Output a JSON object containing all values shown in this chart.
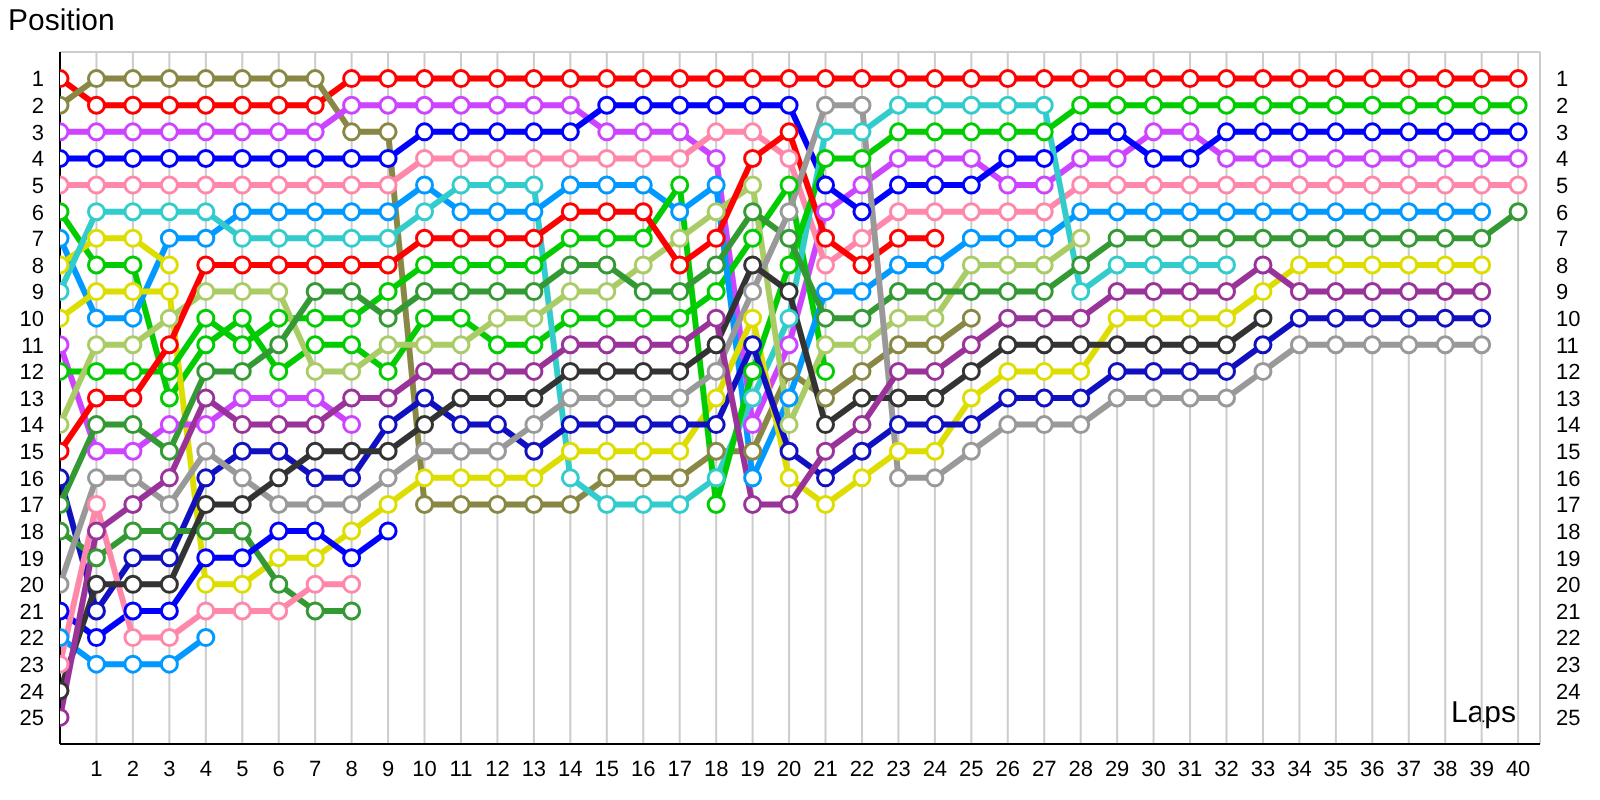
{
  "chart_data": {
    "type": "line",
    "xlabel": "Laps",
    "ylabel": "Position",
    "x": [
      0,
      1,
      2,
      3,
      4,
      5,
      6,
      7,
      8,
      9,
      10,
      11,
      12,
      13,
      14,
      15,
      16,
      17,
      18,
      19,
      20,
      21,
      22,
      23,
      24,
      25,
      26,
      27,
      28,
      29,
      30,
      31,
      32,
      33,
      34,
      35,
      36,
      37,
      38,
      39,
      40
    ],
    "xlim": [
      0,
      40.6
    ],
    "xticks": [
      1,
      2,
      3,
      4,
      5,
      6,
      7,
      8,
      9,
      10,
      11,
      12,
      13,
      14,
      15,
      16,
      17,
      18,
      19,
      20,
      21,
      22,
      23,
      24,
      25,
      26,
      27,
      28,
      29,
      30,
      31,
      32,
      33,
      34,
      35,
      36,
      37,
      38,
      39,
      40
    ],
    "ylim": [
      26,
      0
    ],
    "yticks": [
      1,
      2,
      3,
      4,
      5,
      6,
      7,
      8,
      9,
      10,
      11,
      12,
      13,
      14,
      15,
      16,
      17,
      18,
      19,
      20,
      21,
      22,
      23,
      24,
      25
    ],
    "y2lim": [
      26,
      0
    ],
    "y2ticks": [
      1,
      2,
      3,
      4,
      5,
      6,
      7,
      8,
      9,
      10,
      11,
      12,
      13,
      14,
      15,
      16,
      17,
      18,
      19,
      20,
      21,
      22,
      23,
      24,
      25
    ],
    "grid": true,
    "marker": "circle",
    "line_style": "solid",
    "series": [
      {
        "color": "#ff0000",
        "values": [
          1,
          2,
          2,
          2,
          2,
          2,
          2,
          2,
          1,
          1,
          1,
          1,
          1,
          1,
          1,
          1,
          1,
          1,
          1,
          1,
          1,
          1,
          1,
          1,
          1,
          1,
          1,
          1,
          1,
          1,
          1,
          1,
          1,
          1,
          1,
          1,
          1,
          1,
          1,
          1,
          1
        ]
      },
      {
        "color": "#888844",
        "values": [
          2,
          1,
          1,
          1,
          1,
          1,
          1,
          1,
          3,
          3,
          17,
          17,
          17,
          17,
          17,
          16,
          16,
          16,
          15,
          15,
          12,
          13,
          12,
          11,
          11,
          10,
          null,
          null,
          null,
          null,
          null,
          null,
          null,
          null,
          null,
          null,
          null,
          null,
          null,
          null,
          null
        ]
      },
      {
        "color": "#cc44ff",
        "values": [
          3,
          3,
          3,
          3,
          3,
          3,
          3,
          3,
          2,
          2,
          2,
          2,
          2,
          2,
          2,
          3,
          3,
          3,
          4,
          14,
          11,
          6,
          5,
          4,
          4,
          4,
          5,
          5,
          4,
          4,
          3,
          3,
          4,
          4,
          4,
          4,
          4,
          4,
          4,
          4,
          4
        ]
      },
      {
        "color": "#0000ff",
        "values": [
          4,
          4,
          4,
          4,
          4,
          4,
          4,
          4,
          4,
          4,
          3,
          3,
          3,
          3,
          3,
          2,
          2,
          2,
          2,
          2,
          2,
          5,
          6,
          5,
          5,
          5,
          4,
          4,
          3,
          3,
          4,
          4,
          3,
          3,
          3,
          3,
          3,
          3,
          3,
          3,
          3
        ]
      },
      {
        "color": "#ff88aa",
        "values": [
          5,
          5,
          5,
          5,
          5,
          5,
          5,
          5,
          5,
          5,
          4,
          4,
          4,
          4,
          4,
          4,
          4,
          4,
          3,
          3,
          4,
          8,
          7,
          6,
          6,
          6,
          6,
          6,
          5,
          5,
          5,
          5,
          5,
          5,
          5,
          5,
          5,
          5,
          5,
          5,
          5
        ]
      },
      {
        "color": "#00cc00",
        "values": [
          6,
          8,
          8,
          13,
          11,
          10,
          12,
          11,
          11,
          12,
          10,
          10,
          11,
          11,
          10,
          10,
          10,
          10,
          9,
          7,
          5,
          12,
          null,
          null,
          null,
          null,
          null,
          null,
          null,
          null,
          null,
          null,
          null,
          null,
          null,
          null,
          null,
          null,
          null,
          null,
          null
        ]
      },
      {
        "color": "#0099ff",
        "values": [
          7,
          10,
          10,
          7,
          7,
          6,
          6,
          6,
          6,
          6,
          5,
          6,
          6,
          6,
          5,
          5,
          5,
          6,
          5,
          16,
          13,
          9,
          9,
          8,
          8,
          7,
          7,
          7,
          6,
          6,
          6,
          6,
          6,
          6,
          6,
          6,
          6,
          6,
          6,
          6,
          null
        ]
      },
      {
        "color": "#dddd00",
        "values": [
          8,
          7,
          7,
          8,
          null,
          null,
          null,
          null,
          null,
          null,
          null,
          null,
          null,
          null,
          null,
          null,
          null,
          null,
          null,
          null,
          null,
          null,
          null,
          null,
          null,
          null,
          null,
          null,
          null,
          null,
          null,
          null,
          null,
          null,
          null,
          null,
          null,
          null,
          null,
          null,
          null
        ]
      },
      {
        "color": "#33cccc",
        "values": [
          9,
          6,
          6,
          6,
          6,
          7,
          7,
          7,
          7,
          7,
          6,
          5,
          5,
          5,
          16,
          17,
          17,
          17,
          16,
          13,
          10,
          3,
          3,
          2,
          2,
          2,
          2,
          2,
          9,
          8,
          8,
          8,
          8,
          null,
          null,
          null,
          null,
          null,
          null,
          null,
          null
        ]
      },
      {
        "color": "#dddd00",
        "values": [
          10,
          9,
          9,
          9,
          20,
          20,
          19,
          19,
          18,
          17,
          16,
          16,
          16,
          16,
          15,
          15,
          15,
          15,
          13,
          10,
          16,
          17,
          16,
          15,
          15,
          13,
          12,
          12,
          12,
          10,
          10,
          10,
          10,
          9,
          8,
          8,
          8,
          8,
          8,
          8,
          null
        ]
      },
      {
        "color": "#cc44ff",
        "values": [
          11,
          15,
          15,
          14,
          14,
          13,
          13,
          13,
          14,
          null,
          null,
          null,
          null,
          null,
          null,
          null,
          null,
          null,
          null,
          null,
          null,
          null,
          null,
          null,
          null,
          null,
          null,
          null,
          null,
          null,
          null,
          null,
          null,
          null,
          null,
          null,
          null,
          null,
          null,
          null,
          null
        ]
      },
      {
        "color": "#00cc00",
        "values": [
          12,
          12,
          12,
          12,
          10,
          11,
          10,
          10,
          10,
          9,
          8,
          8,
          8,
          8,
          7,
          7,
          7,
          5,
          17,
          12,
          8,
          4,
          4,
          3,
          3,
          3,
          3,
          3,
          2,
          2,
          2,
          2,
          2,
          2,
          2,
          2,
          2,
          2,
          2,
          2,
          2
        ]
      },
      {
        "color": "#aacc66",
        "values": [
          14,
          11,
          11,
          10,
          9,
          9,
          9,
          12,
          12,
          11,
          11,
          11,
          10,
          10,
          9,
          9,
          8,
          7,
          6,
          5,
          14,
          11,
          11,
          10,
          10,
          8,
          8,
          8,
          7,
          null,
          null,
          null,
          null,
          null,
          null,
          null,
          null,
          null,
          null,
          null,
          null
        ]
      },
      {
        "color": "#ff0000",
        "values": [
          15,
          13,
          13,
          11,
          8,
          8,
          8,
          8,
          8,
          8,
          7,
          7,
          7,
          7,
          6,
          6,
          6,
          8,
          7,
          4,
          3,
          7,
          8,
          7,
          7,
          null,
          null,
          null,
          null,
          null,
          null,
          null,
          null,
          null,
          null,
          null,
          null,
          null,
          null,
          null,
          null
        ]
      },
      {
        "color": "#1010c0",
        "values": [
          16,
          21,
          19,
          19,
          16,
          15,
          15,
          16,
          16,
          14,
          13,
          14,
          14,
          15,
          14,
          14,
          14,
          14,
          14,
          11,
          15,
          16,
          15,
          14,
          14,
          14,
          13,
          13,
          13,
          12,
          12,
          12,
          12,
          11,
          10,
          10,
          10,
          10,
          10,
          10,
          null
        ]
      },
      {
        "color": "#339933",
        "values": [
          17,
          14,
          14,
          15,
          12,
          12,
          11,
          9,
          9,
          10,
          9,
          9,
          9,
          9,
          8,
          8,
          9,
          9,
          8,
          6,
          7,
          10,
          10,
          9,
          9,
          9,
          9,
          9,
          8,
          7,
          7,
          7,
          7,
          7,
          7,
          7,
          7,
          7,
          7,
          7,
          6
        ]
      },
      {
        "color": "#339933",
        "values": [
          18,
          19,
          18,
          18,
          18,
          18,
          20,
          21,
          21,
          null,
          null,
          null,
          null,
          null,
          null,
          null,
          null,
          null,
          null,
          null,
          null,
          null,
          null,
          null,
          null,
          null,
          null,
          null,
          null,
          null,
          null,
          null,
          null,
          null,
          null,
          null,
          null,
          null,
          null,
          null,
          null
        ]
      },
      {
        "color": "#999999",
        "values": [
          20,
          16,
          16,
          17,
          15,
          16,
          17,
          17,
          17,
          16,
          15,
          15,
          15,
          14,
          13,
          13,
          13,
          13,
          12,
          9,
          6,
          2,
          2,
          16,
          16,
          15,
          14,
          14,
          14,
          13,
          13,
          13,
          13,
          12,
          11,
          11,
          11,
          11,
          11,
          11,
          null
        ]
      },
      {
        "color": "#0000ff",
        "values": [
          21,
          22,
          21,
          21,
          19,
          19,
          18,
          18,
          19,
          18,
          null,
          null,
          null,
          null,
          null,
          null,
          null,
          null,
          null,
          null,
          null,
          null,
          null,
          null,
          null,
          null,
          null,
          null,
          null,
          null,
          null,
          null,
          null,
          null,
          null,
          null,
          null,
          null,
          null,
          null,
          null
        ]
      },
      {
        "color": "#0099ff",
        "values": [
          22,
          23,
          23,
          23,
          22,
          null,
          null,
          null,
          null,
          null,
          null,
          null,
          null,
          null,
          null,
          null,
          null,
          null,
          null,
          null,
          null,
          null,
          null,
          null,
          null,
          null,
          null,
          null,
          null,
          null,
          null,
          null,
          null,
          null,
          null,
          null,
          null,
          null,
          null,
          null,
          null
        ]
      },
      {
        "color": "#ff88aa",
        "values": [
          23,
          17,
          22,
          22,
          21,
          21,
          21,
          20,
          20,
          null,
          null,
          null,
          null,
          null,
          null,
          null,
          null,
          null,
          null,
          null,
          null,
          null,
          null,
          null,
          null,
          null,
          null,
          null,
          null,
          null,
          null,
          null,
          null,
          null,
          null,
          null,
          null,
          null,
          null,
          null,
          null
        ]
      },
      {
        "color": "#333333",
        "values": [
          24,
          20,
          20,
          20,
          17,
          17,
          16,
          15,
          15,
          15,
          14,
          13,
          13,
          13,
          12,
          12,
          12,
          12,
          11,
          8,
          9,
          14,
          13,
          13,
          13,
          12,
          11,
          11,
          11,
          11,
          11,
          11,
          11,
          10,
          null,
          null,
          null,
          null,
          null,
          null,
          null
        ]
      },
      {
        "color": "#993399",
        "values": [
          25,
          18,
          17,
          16,
          13,
          14,
          14,
          14,
          13,
          13,
          12,
          12,
          12,
          12,
          11,
          11,
          11,
          11,
          10,
          17,
          17,
          15,
          14,
          12,
          12,
          11,
          10,
          10,
          10,
          9,
          9,
          9,
          9,
          8,
          9,
          9,
          9,
          9,
          9,
          9,
          null
        ]
      }
    ]
  }
}
